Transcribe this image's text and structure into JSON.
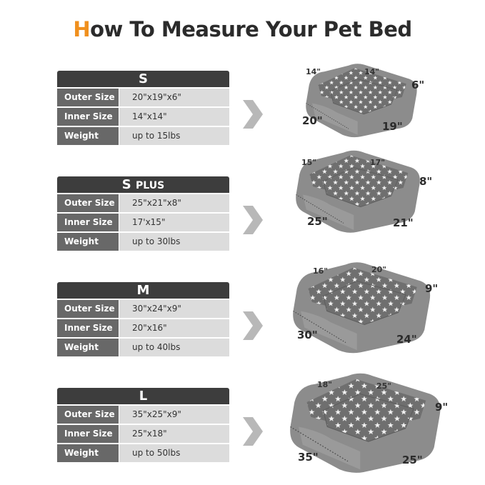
{
  "title": {
    "first_letter": "H",
    "rest": "ow To Measure Your Pet Bed"
  },
  "labels": {
    "outer": "Outer Size",
    "inner": "Inner Size",
    "weight": "Weight"
  },
  "sizes": [
    {
      "name": "S",
      "suffix": "",
      "outer": "20\"x19\"x6\"",
      "inner": "14\"x14\"",
      "weight": "up to 15lbs",
      "dims": {
        "inner_a": "14\"",
        "inner_b": "14\"",
        "height": "6\"",
        "length": "20\"",
        "width": "19\""
      }
    },
    {
      "name": "S",
      "suffix": "PLUS",
      "outer": "25\"x21\"x8\"",
      "inner": "17'x15\"",
      "weight": "up to 30lbs",
      "dims": {
        "inner_a": "15\"",
        "inner_b": "17\"",
        "height": "8\"",
        "length": "25\"",
        "width": "21\""
      }
    },
    {
      "name": "M",
      "suffix": "",
      "outer": "30\"x24\"x9\"",
      "inner": "20\"x16\"",
      "weight": "up to 40lbs",
      "dims": {
        "inner_a": "16\"",
        "inner_b": "20\"",
        "height": "9\"",
        "length": "30\"",
        "width": "24\""
      }
    },
    {
      "name": "L",
      "suffix": "",
      "outer": "35\"x25\"x9\"",
      "inner": "25\"x18\"",
      "weight": "up to 50lbs",
      "dims": {
        "inner_a": "18\"",
        "inner_b": "25\"",
        "height": "9\"",
        "length": "35\"",
        "width": "25\""
      }
    }
  ],
  "colors": {
    "accent": "#f0901e",
    "header": "#3d3d3d",
    "key": "#686868",
    "value": "#dcdcdc",
    "bed": "#8a8a8a"
  }
}
